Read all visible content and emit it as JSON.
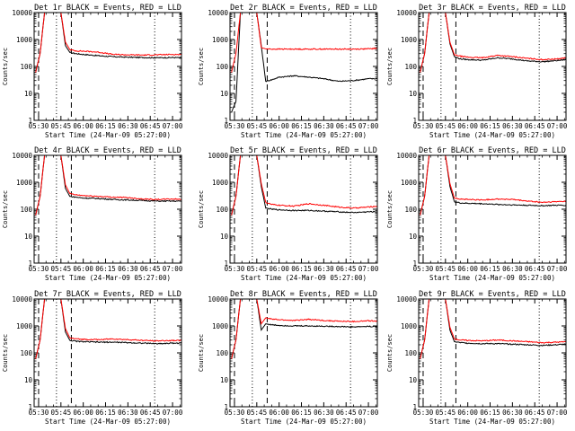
{
  "figure": {
    "x_tick_labels": [
      "05:30",
      "05:45",
      "06:00",
      "06:15",
      "06:30",
      "06:45",
      "07:00"
    ],
    "y_tick_labels": [
      "1",
      "10",
      "100",
      "1000",
      "10000"
    ],
    "xlabel": "Start Time (24-Mar-09 05:27:00)",
    "ylabel": "Counts/sec",
    "series_colors": {
      "Events": "#000000",
      "LLD": "#ff0000"
    }
  },
  "chart_data": [
    {
      "type": "line",
      "title": "Det 1r BLACK = Events, RED = LLD",
      "xlabel": "Start Time (24-Mar-09 05:27:00)",
      "ylabel": "Counts/sec",
      "x_unit": "time_of_day",
      "xlim": [
        "05:27",
        "07:06"
      ],
      "ylim": [
        1,
        10000
      ],
      "yscale": "log",
      "x": [
        "05:28",
        "05:31",
        "05:34",
        "05:37",
        "05:39",
        "05:45",
        "05:48",
        "05:51",
        "05:55",
        "06:00",
        "06:10",
        "06:20",
        "06:30",
        "06:40",
        "06:50",
        "07:00",
        "07:06"
      ],
      "series": [
        {
          "name": "Events",
          "color": "#000000",
          "values": [
            60,
            300,
            10000,
            10000,
            10000,
            10000,
            600,
            330,
            300,
            280,
            250,
            230,
            220,
            215,
            210,
            215,
            210
          ]
        },
        {
          "name": "LLD",
          "color": "#ff0000",
          "values": [
            60,
            300,
            10000,
            10000,
            10000,
            10000,
            800,
            420,
            380,
            370,
            340,
            280,
            270,
            265,
            270,
            280,
            275
          ]
        }
      ],
      "dashed_lines_x": [
        "05:30",
        "05:52"
      ],
      "dotted_lines_x": [
        "05:42",
        "06:48"
      ]
    },
    {
      "type": "line",
      "title": "Det 2r BLACK = Events, RED = LLD",
      "xlabel": "Start Time (24-Mar-09 05:27:00)",
      "ylabel": "Counts/sec",
      "x_unit": "time_of_day",
      "xlim": [
        "05:27",
        "07:06"
      ],
      "ylim": [
        1,
        10000
      ],
      "yscale": "log",
      "x": [
        "05:28",
        "05:31",
        "05:34",
        "05:37",
        "05:39",
        "05:45",
        "05:48",
        "05:51",
        "05:55",
        "06:00",
        "06:10",
        "06:20",
        "06:30",
        "06:40",
        "06:50",
        "07:00",
        "07:06"
      ],
      "series": [
        {
          "name": "Events",
          "color": "#000000",
          "values": [
            2,
            5,
            10000,
            10000,
            10000,
            10000,
            600,
            28,
            32,
            40,
            45,
            40,
            35,
            28,
            30,
            35,
            35
          ]
        },
        {
          "name": "LLD",
          "color": "#ff0000",
          "values": [
            60,
            300,
            10000,
            10000,
            10000,
            10000,
            500,
            450,
            440,
            440,
            440,
            440,
            440,
            440,
            440,
            450,
            470
          ]
        }
      ],
      "dashed_lines_x": [
        "05:30",
        "05:52"
      ],
      "dotted_lines_x": [
        "05:42",
        "06:48"
      ]
    },
    {
      "type": "line",
      "title": "Det 3r BLACK = Events, RED = LLD",
      "xlabel": "Start Time (24-Mar-09 05:27:00)",
      "ylabel": "Counts/sec",
      "x_unit": "time_of_day",
      "xlim": [
        "05:27",
        "07:06"
      ],
      "ylim": [
        1,
        10000
      ],
      "yscale": "log",
      "x": [
        "05:28",
        "05:31",
        "05:34",
        "05:37",
        "05:39",
        "05:45",
        "05:48",
        "05:51",
        "05:55",
        "06:00",
        "06:10",
        "06:20",
        "06:30",
        "06:40",
        "06:50",
        "07:00",
        "07:06"
      ],
      "series": [
        {
          "name": "Events",
          "color": "#000000",
          "values": [
            60,
            300,
            10000,
            10000,
            10000,
            10000,
            700,
            230,
            190,
            180,
            170,
            210,
            190,
            160,
            150,
            165,
            180
          ]
        },
        {
          "name": "LLD",
          "color": "#ff0000",
          "values": [
            60,
            300,
            10000,
            10000,
            10000,
            10000,
            800,
            270,
            240,
            220,
            210,
            260,
            230,
            200,
            180,
            190,
            210
          ]
        }
      ],
      "dashed_lines_x": [
        "05:30",
        "05:52"
      ],
      "dotted_lines_x": [
        "05:42",
        "06:48"
      ]
    },
    {
      "type": "line",
      "title": "Det 4r BLACK = Events, RED = LLD",
      "xlabel": "Start Time (24-Mar-09 05:27:00)",
      "ylabel": "Counts/sec",
      "x_unit": "time_of_day",
      "xlim": [
        "05:27",
        "07:06"
      ],
      "ylim": [
        1,
        10000
      ],
      "yscale": "log",
      "x": [
        "05:28",
        "05:31",
        "05:34",
        "05:37",
        "05:39",
        "05:45",
        "05:48",
        "05:51",
        "05:55",
        "06:00",
        "06:10",
        "06:20",
        "06:30",
        "06:40",
        "06:50",
        "07:00",
        "07:06"
      ],
      "series": [
        {
          "name": "Events",
          "color": "#000000",
          "values": [
            60,
            300,
            10000,
            10000,
            10000,
            10000,
            600,
            300,
            280,
            260,
            250,
            230,
            220,
            210,
            200,
            200,
            200
          ]
        },
        {
          "name": "LLD",
          "color": "#ff0000",
          "values": [
            60,
            300,
            10000,
            10000,
            10000,
            10000,
            800,
            380,
            340,
            320,
            300,
            280,
            270,
            240,
            230,
            240,
            230
          ]
        }
      ],
      "dashed_lines_x": [
        "05:30",
        "05:52"
      ],
      "dotted_lines_x": [
        "05:42",
        "06:48"
      ]
    },
    {
      "type": "line",
      "title": "Det 5r BLACK = Events, RED = LLD",
      "xlabel": "Start Time (24-Mar-09 05:27:00)",
      "ylabel": "Counts/sec",
      "x_unit": "time_of_day",
      "xlim": [
        "05:27",
        "07:06"
      ],
      "ylim": [
        1,
        10000
      ],
      "yscale": "log",
      "x": [
        "05:28",
        "05:31",
        "05:34",
        "05:37",
        "05:39",
        "05:45",
        "05:48",
        "05:51",
        "05:55",
        "06:00",
        "06:10",
        "06:20",
        "06:30",
        "06:40",
        "06:50",
        "07:00",
        "07:06"
      ],
      "series": [
        {
          "name": "Events",
          "color": "#000000",
          "values": [
            60,
            300,
            10000,
            10000,
            10000,
            10000,
            700,
            110,
            100,
            95,
            90,
            90,
            85,
            80,
            75,
            80,
            80
          ]
        },
        {
          "name": "LLD",
          "color": "#ff0000",
          "values": [
            60,
            300,
            10000,
            10000,
            10000,
            10000,
            900,
            180,
            150,
            140,
            130,
            160,
            140,
            120,
            110,
            120,
            130
          ]
        }
      ],
      "dashed_lines_x": [
        "05:30",
        "05:52"
      ],
      "dotted_lines_x": [
        "05:42",
        "06:48"
      ]
    },
    {
      "type": "line",
      "title": "Det 6r BLACK = Events, RED = LLD",
      "xlabel": "Start Time (24-Mar-09 05:27:00)",
      "ylabel": "Counts/sec",
      "x_unit": "time_of_day",
      "xlim": [
        "05:27",
        "07:06"
      ],
      "ylim": [
        1,
        10000
      ],
      "yscale": "log",
      "x": [
        "05:28",
        "05:31",
        "05:34",
        "05:37",
        "05:39",
        "05:45",
        "05:48",
        "05:51",
        "05:55",
        "06:00",
        "06:10",
        "06:20",
        "06:30",
        "06:40",
        "06:50",
        "07:00",
        "07:06"
      ],
      "series": [
        {
          "name": "Events",
          "color": "#000000",
          "values": [
            60,
            300,
            10000,
            10000,
            10000,
            10000,
            700,
            190,
            170,
            165,
            160,
            150,
            145,
            140,
            135,
            140,
            140
          ]
        },
        {
          "name": "LLD",
          "color": "#ff0000",
          "values": [
            60,
            300,
            10000,
            10000,
            10000,
            10000,
            900,
            260,
            240,
            230,
            220,
            240,
            230,
            200,
            180,
            190,
            200
          ]
        }
      ],
      "dashed_lines_x": [
        "05:30",
        "05:52"
      ],
      "dotted_lines_x": [
        "05:42",
        "06:48"
      ]
    },
    {
      "type": "line",
      "title": "Det 7r BLACK = Events, RED = LLD",
      "xlabel": "Start Time (24-Mar-09 05:27:00)",
      "ylabel": "Counts/sec",
      "x_unit": "time_of_day",
      "xlim": [
        "05:27",
        "07:06"
      ],
      "ylim": [
        1,
        10000
      ],
      "yscale": "log",
      "x": [
        "05:28",
        "05:31",
        "05:34",
        "05:37",
        "05:39",
        "05:45",
        "05:48",
        "05:51",
        "05:55",
        "06:00",
        "06:10",
        "06:20",
        "06:30",
        "06:40",
        "06:50",
        "07:00",
        "07:06"
      ],
      "series": [
        {
          "name": "Events",
          "color": "#000000",
          "values": [
            60,
            300,
            10000,
            10000,
            10000,
            10000,
            600,
            290,
            270,
            260,
            250,
            250,
            240,
            230,
            220,
            230,
            230
          ]
        },
        {
          "name": "LLD",
          "color": "#ff0000",
          "values": [
            60,
            300,
            10000,
            10000,
            10000,
            10000,
            800,
            360,
            330,
            320,
            310,
            330,
            310,
            290,
            280,
            290,
            290
          ]
        }
      ],
      "dashed_lines_x": [
        "05:30",
        "05:52"
      ],
      "dotted_lines_x": [
        "05:42",
        "06:48"
      ]
    },
    {
      "type": "line",
      "title": "Det 8r BLACK = Events, RED = LLD",
      "xlabel": "Start Time (24-Mar-09 05:27:00)",
      "ylabel": "Counts/sec",
      "x_unit": "time_of_day",
      "xlim": [
        "05:27",
        "07:06"
      ],
      "ylim": [
        1,
        10000
      ],
      "yscale": "log",
      "x": [
        "05:28",
        "05:31",
        "05:34",
        "05:37",
        "05:39",
        "05:45",
        "05:48",
        "05:51",
        "05:55",
        "06:00",
        "06:10",
        "06:20",
        "06:30",
        "06:40",
        "06:50",
        "07:00",
        "07:06"
      ],
      "series": [
        {
          "name": "Events",
          "color": "#000000",
          "values": [
            60,
            300,
            10000,
            10000,
            10000,
            10000,
            700,
            1200,
            1100,
            1050,
            1000,
            1000,
            980,
            950,
            920,
            960,
            950
          ]
        },
        {
          "name": "LLD",
          "color": "#ff0000",
          "values": [
            60,
            300,
            10000,
            10000,
            10000,
            10000,
            1200,
            2000,
            1800,
            1700,
            1600,
            1750,
            1600,
            1500,
            1450,
            1550,
            1500
          ]
        }
      ],
      "dashed_lines_x": [
        "05:30",
        "05:52"
      ],
      "dotted_lines_x": [
        "05:42",
        "06:48"
      ]
    },
    {
      "type": "line",
      "title": "Det 9r BLACK = Events, RED = LLD",
      "xlabel": "Start Time (24-Mar-09 05:27:00)",
      "ylabel": "Counts/sec",
      "x_unit": "time_of_day",
      "xlim": [
        "05:27",
        "07:06"
      ],
      "ylim": [
        1,
        10000
      ],
      "yscale": "log",
      "x": [
        "05:28",
        "05:31",
        "05:34",
        "05:37",
        "05:39",
        "05:45",
        "05:48",
        "05:51",
        "05:55",
        "06:00",
        "06:10",
        "06:20",
        "06:30",
        "06:40",
        "06:50",
        "07:00",
        "07:06"
      ],
      "series": [
        {
          "name": "Events",
          "color": "#000000",
          "values": [
            60,
            300,
            10000,
            10000,
            10000,
            10000,
            700,
            260,
            240,
            230,
            220,
            220,
            210,
            200,
            190,
            200,
            210
          ]
        },
        {
          "name": "LLD",
          "color": "#ff0000",
          "values": [
            60,
            300,
            10000,
            10000,
            10000,
            10000,
            900,
            330,
            300,
            290,
            280,
            300,
            280,
            260,
            240,
            250,
            260
          ]
        }
      ],
      "dashed_lines_x": [
        "05:30",
        "05:52"
      ],
      "dotted_lines_x": [
        "05:42",
        "06:48"
      ]
    }
  ]
}
